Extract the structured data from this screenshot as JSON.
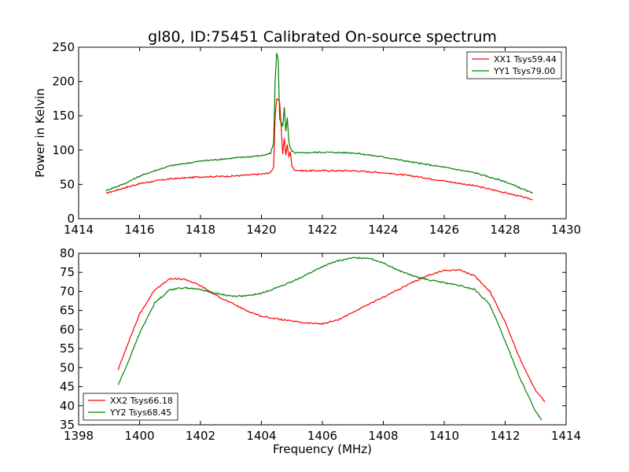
{
  "title": "gl80, ID:75451 Calibrated On-source spectrum",
  "chart_data": [
    {
      "type": "line",
      "ylabel": "Power in Kelvin",
      "xlabel": "",
      "xlim": [
        1414,
        1430
      ],
      "ylim": [
        0,
        250
      ],
      "xticks": [
        1414,
        1416,
        1418,
        1420,
        1422,
        1424,
        1426,
        1428,
        1430
      ],
      "yticks": [
        0,
        50,
        100,
        150,
        200,
        250
      ],
      "legend_position": "top-right",
      "series": [
        {
          "name": "XX1 Tsys59.44",
          "color": "#ff0000",
          "x": [
            1414.9,
            1415.5,
            1416.0,
            1416.5,
            1417.0,
            1418.0,
            1419.0,
            1420.0,
            1420.3,
            1420.4,
            1420.45,
            1420.5,
            1420.6,
            1420.7,
            1420.75,
            1420.8,
            1420.85,
            1420.9,
            1420.95,
            1421.0,
            1421.1,
            1421.3,
            1422.0,
            1423.0,
            1424.0,
            1425.0,
            1426.0,
            1427.0,
            1428.0,
            1428.9
          ],
          "y": [
            37,
            45,
            51,
            55,
            58,
            61,
            62,
            65,
            67,
            75,
            150,
            175,
            170,
            95,
            118,
            93,
            108,
            90,
            98,
            76,
            71,
            70,
            70,
            70,
            67,
            62,
            55,
            48,
            38,
            28
          ]
        },
        {
          "name": "YY1 Tsys79.00",
          "color": "#008000",
          "x": [
            1414.9,
            1415.5,
            1416.0,
            1416.5,
            1417.0,
            1418.0,
            1419.0,
            1420.0,
            1420.3,
            1420.4,
            1420.45,
            1420.5,
            1420.55,
            1420.6,
            1420.7,
            1420.75,
            1420.8,
            1420.85,
            1420.9,
            1420.95,
            1421.0,
            1421.1,
            1421.3,
            1422.0,
            1423.0,
            1424.0,
            1425.0,
            1426.0,
            1427.0,
            1428.0,
            1428.9
          ],
          "y": [
            41,
            51,
            62,
            70,
            77,
            84,
            88,
            92,
            95,
            110,
            200,
            242,
            232,
            145,
            135,
            162,
            128,
            148,
            112,
            103,
            98,
            96,
            96,
            97,
            96,
            90,
            82,
            75,
            67,
            54,
            37
          ]
        }
      ]
    },
    {
      "type": "line",
      "ylabel": "",
      "xlabel": "Frequency (MHz)",
      "xlim": [
        1398,
        1414
      ],
      "ylim": [
        35,
        80
      ],
      "xticks": [
        1398,
        1400,
        1402,
        1404,
        1406,
        1408,
        1410,
        1412,
        1414
      ],
      "yticks": [
        35,
        40,
        45,
        50,
        55,
        60,
        65,
        70,
        75,
        80
      ],
      "legend_position": "bottom-left",
      "series": [
        {
          "name": "XX2 Tsys66.18",
          "color": "#ff0000",
          "x": [
            1399.3,
            1399.6,
            1400.0,
            1400.5,
            1401.0,
            1401.5,
            1402.0,
            1402.5,
            1403.0,
            1403.5,
            1404.0,
            1404.5,
            1405.0,
            1405.5,
            1406.0,
            1406.5,
            1407.0,
            1407.5,
            1408.0,
            1408.5,
            1409.0,
            1409.5,
            1410.0,
            1410.5,
            1411.0,
            1411.5,
            1412.0,
            1412.5,
            1413.0,
            1413.3
          ],
          "y": [
            49.5,
            56,
            64,
            70.5,
            73.3,
            73.2,
            71.5,
            69,
            67,
            65,
            63.5,
            62.8,
            62.2,
            61.7,
            61.5,
            62.5,
            64.5,
            66.5,
            68.5,
            70.5,
            72.5,
            74.3,
            75.5,
            75.7,
            74,
            70,
            62,
            52,
            44,
            41
          ]
        },
        {
          "name": "YY2 Tsys68.45",
          "color": "#008000",
          "x": [
            1399.3,
            1399.6,
            1400.0,
            1400.5,
            1401.0,
            1401.5,
            1402.0,
            1402.5,
            1403.0,
            1403.5,
            1404.0,
            1404.5,
            1405.0,
            1405.5,
            1406.0,
            1406.5,
            1407.0,
            1407.5,
            1408.0,
            1408.5,
            1409.0,
            1409.5,
            1410.0,
            1410.5,
            1411.0,
            1411.5,
            1412.0,
            1412.5,
            1413.0,
            1413.2
          ],
          "y": [
            45.5,
            51,
            59,
            67,
            70.5,
            71,
            70.5,
            69.5,
            68.8,
            68.8,
            69.5,
            71,
            72.5,
            74.5,
            76.5,
            78,
            78.8,
            78.8,
            77.5,
            75.5,
            74,
            73,
            72.3,
            71.5,
            70.5,
            66.5,
            57,
            47,
            38.5,
            36.3
          ]
        }
      ]
    }
  ]
}
